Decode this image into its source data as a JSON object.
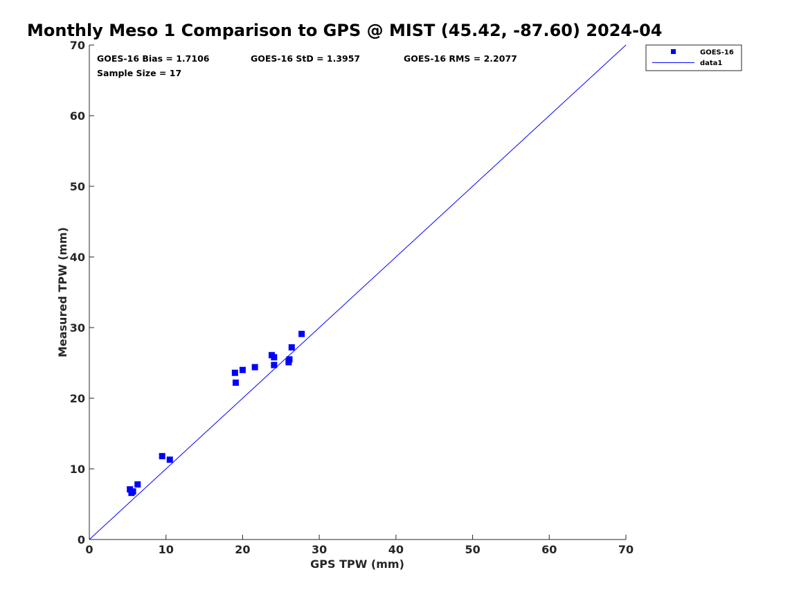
{
  "chart_data": {
    "type": "scatter",
    "title": "Monthly Meso 1 Comparison to GPS @ MIST (45.42, -87.60) 2024-04",
    "xlabel": "GPS TPW (mm)",
    "ylabel": "Measured TPW (mm)",
    "xlim": [
      0,
      70
    ],
    "ylim": [
      0,
      70
    ],
    "xticks": [
      "0",
      "10",
      "20",
      "30",
      "40",
      "50",
      "60",
      "70"
    ],
    "yticks": [
      "0",
      "10",
      "20",
      "30",
      "40",
      "50",
      "60",
      "70"
    ],
    "grid": false,
    "legend_position": "top-right outside",
    "stats": {
      "bias": "GOES-16 Bias = 1.7106",
      "std": "GOES-16 StD = 1.3957",
      "rms": "GOES-16 RMS = 2.2077",
      "sample": "Sample Size = 17"
    },
    "series": [
      {
        "name": "GOES-16",
        "kind": "scatter",
        "marker": "square",
        "color": "#0000ff",
        "points": [
          [
            5.3,
            7.1
          ],
          [
            5.5,
            6.6
          ],
          [
            5.7,
            6.8
          ],
          [
            6.3,
            7.8
          ],
          [
            9.5,
            11.8
          ],
          [
            10.5,
            11.3
          ],
          [
            19.0,
            23.6
          ],
          [
            19.1,
            22.2
          ],
          [
            20.0,
            24.0
          ],
          [
            21.6,
            24.4
          ],
          [
            23.8,
            26.1
          ],
          [
            24.1,
            25.8
          ],
          [
            24.1,
            24.7
          ],
          [
            26.0,
            25.1
          ],
          [
            26.1,
            25.5
          ],
          [
            26.4,
            27.2
          ],
          [
            27.7,
            29.1
          ]
        ]
      },
      {
        "name": "data1",
        "kind": "line",
        "color": "#0000ff",
        "points": [
          [
            0,
            0
          ],
          [
            70,
            70
          ]
        ]
      }
    ]
  }
}
